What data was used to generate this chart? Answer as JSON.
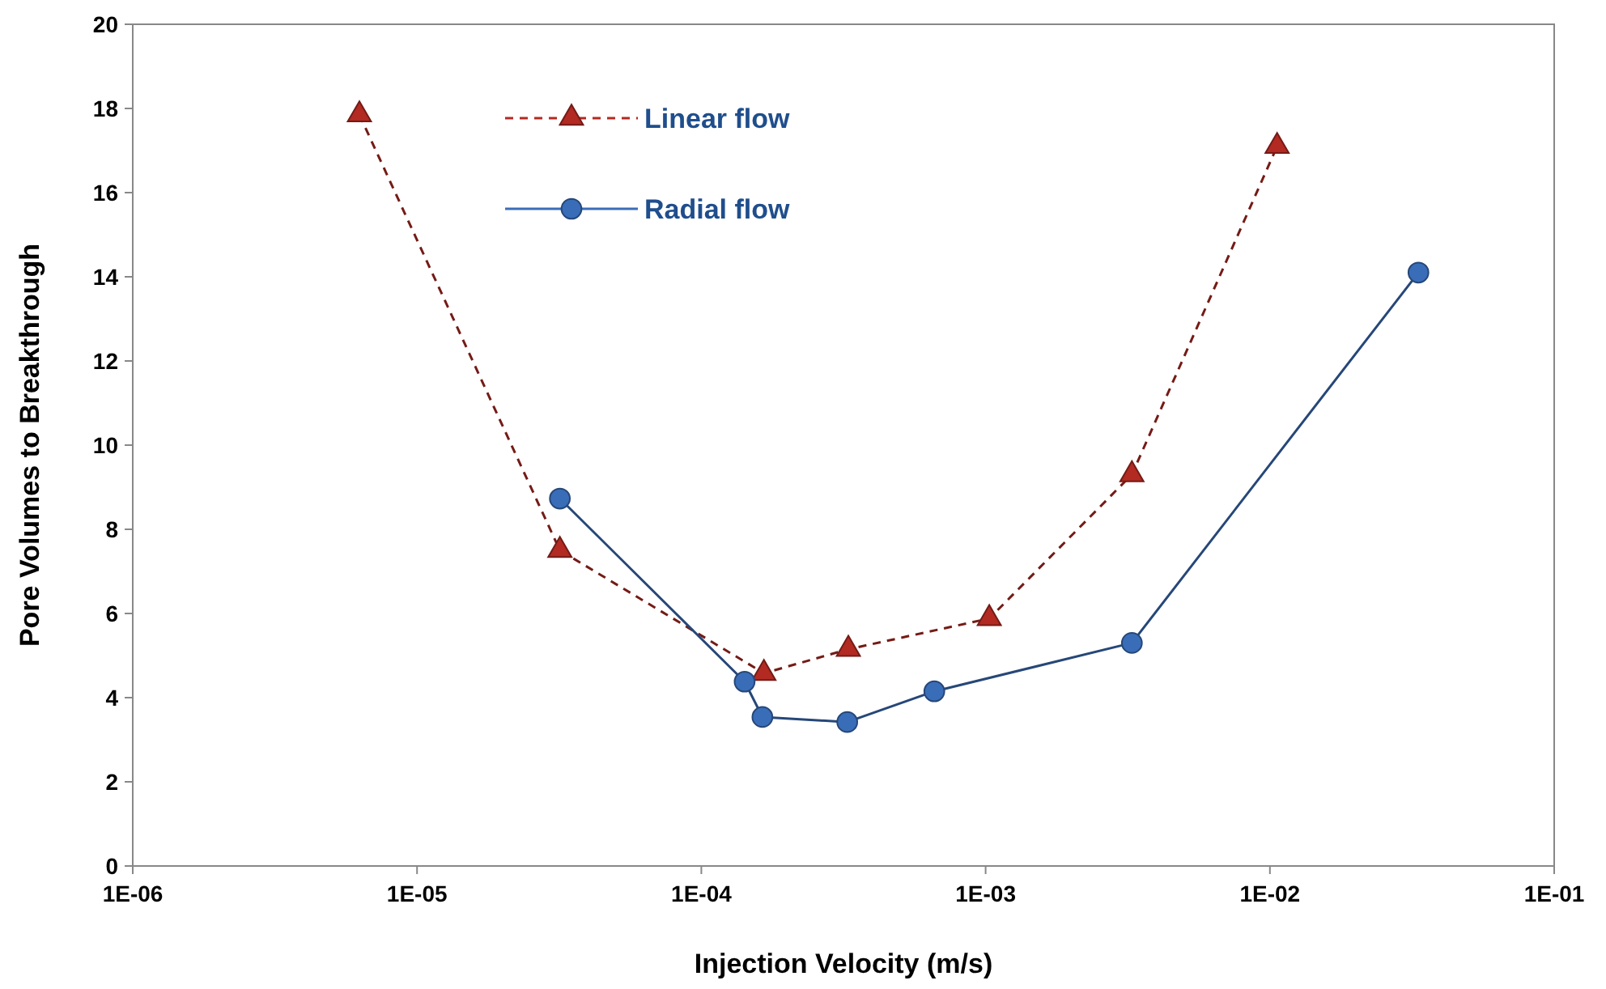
{
  "chart_data": {
    "type": "line",
    "xlabel": "Injection Velocity (m/s)",
    "ylabel": "Pore Volumes to Breakthrough",
    "log": "x",
    "xlim": [
      1e-06,
      0.1
    ],
    "xticks": [
      {
        "value": 1e-06,
        "label": "1E-06"
      },
      {
        "value": 1e-05,
        "label": "1E-05"
      },
      {
        "value": 0.0001,
        "label": "1E-04"
      },
      {
        "value": 0.001,
        "label": "1E-03"
      },
      {
        "value": 0.01,
        "label": "1E-02"
      },
      {
        "value": 0.1,
        "label": "1E-01"
      }
    ],
    "ylim": [
      0,
      20
    ],
    "yticks": [
      0,
      2,
      4,
      6,
      8,
      10,
      12,
      14,
      16,
      18,
      20
    ],
    "grid": false,
    "legend": "top",
    "series": [
      {
        "name": "Linear flow",
        "color": "#b22a22",
        "marker": "triangle",
        "line_style": "dashed",
        "x": [
          6.27e-06,
          3.18e-05,
          0.000166,
          0.000329,
          0.00103,
          0.00327,
          0.0106
        ],
        "values": [
          17.85,
          7.5,
          4.58,
          5.15,
          5.88,
          9.3,
          17.1
        ]
      },
      {
        "name": "Radial flow",
        "color": "#3a6db8",
        "marker": "circle",
        "line_style": "solid",
        "x": [
          3.18e-05,
          0.000142,
          0.000164,
          0.000326,
          0.00066,
          0.00327,
          0.0333
        ],
        "values": [
          8.73,
          4.38,
          3.54,
          3.42,
          4.15,
          5.3,
          14.1
        ]
      }
    ]
  }
}
